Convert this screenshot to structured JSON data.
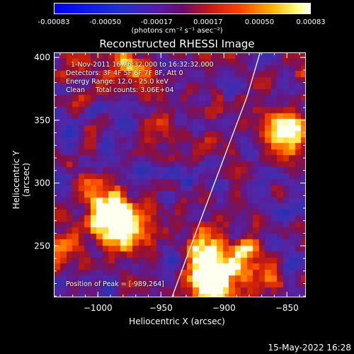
{
  "colorbar": {
    "ticks": [
      "-0.00083",
      "-0.00050",
      "-0.00017",
      "0.00017",
      "0.00050",
      "0.00083"
    ],
    "unit_label": "(photons cm⁻² s⁻¹ asec⁻²)"
  },
  "title": "Reconstructed RHESSI Image",
  "info": {
    "time_range": "1-Nov-2011 16:26:32.000 to 16:32:32.000",
    "detectors": "Detectors: 3F 4F 5F 6F 7F 8F, Att 0",
    "energy": "Energy Range: 12.0 - 25.0 keV",
    "method": "Clean     Total counts: 3.06E+04",
    "peak": "Position of Peak = [-989,264]"
  },
  "footer_date": "15-May-2022 16:28",
  "chart_data": {
    "type": "heatmap",
    "title": "Reconstructed RHESSI Image",
    "xlabel": "Heliocentric X (arcsec)",
    "ylabel": "Heliocentric Y (arcsec)",
    "xlim": [
      -1035,
      -835
    ],
    "ylim": [
      209,
      404
    ],
    "x_ticks": [
      -1000,
      -950,
      -900,
      -850
    ],
    "y_ticks": [
      250,
      300,
      350,
      400
    ],
    "colorbar_range": [
      -0.00083,
      0.00083
    ],
    "colormap": "red-temperature (blue negative, purple zero, red/yellow/white positive)",
    "peak_position": [
      -989,
      264
    ],
    "limb_curve": [
      [
        -942,
        209
      ],
      [
        -927,
        250
      ],
      [
        -912,
        290
      ],
      [
        -897,
        330
      ],
      [
        -882,
        370
      ],
      [
        -872,
        404
      ]
    ],
    "hotspots": [
      {
        "x": -980,
        "y": 265,
        "level": 1.0
      },
      {
        "x": -995,
        "y": 282,
        "level": 0.8
      },
      {
        "x": -912,
        "y": 222,
        "level": 0.95
      },
      {
        "x": -915,
        "y": 245,
        "level": 0.65
      },
      {
        "x": -975,
        "y": 390,
        "level": 0.55
      },
      {
        "x": -1020,
        "y": 395,
        "level": 0.5
      },
      {
        "x": -880,
        "y": 240,
        "level": 0.7
      },
      {
        "x": -858,
        "y": 330,
        "level": 0.55
      },
      {
        "x": -845,
        "y": 345,
        "level": 0.5
      },
      {
        "x": -1025,
        "y": 250,
        "level": 0.45
      },
      {
        "x": -955,
        "y": 340,
        "level": 0.35
      }
    ]
  }
}
